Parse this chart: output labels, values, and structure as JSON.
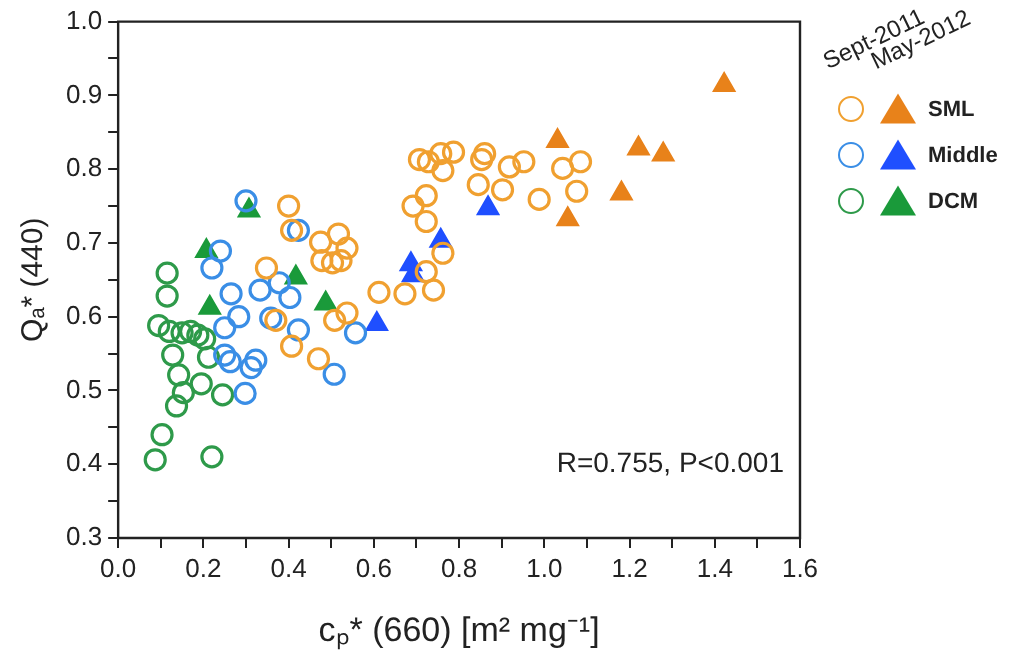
{
  "chart_data": {
    "type": "scatter",
    "xlabel": "cₚ* (660) [m² mg⁻¹]",
    "ylabel": "Qₐ* (440)",
    "xlim": [
      0,
      1.6
    ],
    "ylim": [
      0.3,
      1.0
    ],
    "xticks": [
      {
        "value": 0,
        "label": "0.0"
      },
      {
        "value": 0.1,
        "label": null
      },
      {
        "value": 0.2,
        "label": "0.2"
      },
      {
        "value": 0.3,
        "label": null
      },
      {
        "value": 0.4,
        "label": "0.4"
      },
      {
        "value": 0.5,
        "label": null
      },
      {
        "value": 0.6,
        "label": "0.6"
      },
      {
        "value": 0.7,
        "label": null
      },
      {
        "value": 0.8,
        "label": "0.8"
      },
      {
        "value": 0.9,
        "label": null
      },
      {
        "value": 1.0,
        "label": "1.0"
      },
      {
        "value": 1.1,
        "label": null
      },
      {
        "value": 1.2,
        "label": "1.2"
      },
      {
        "value": 1.3,
        "label": null
      },
      {
        "value": 1.4,
        "label": "1.4"
      },
      {
        "value": 1.5,
        "label": null
      },
      {
        "value": 1.6,
        "label": "1.6"
      }
    ],
    "yticks": [
      {
        "value": 0.3,
        "label": "0.3"
      },
      {
        "value": 0.35,
        "label": null
      },
      {
        "value": 0.4,
        "label": "0.4"
      },
      {
        "value": 0.45,
        "label": null
      },
      {
        "value": 0.5,
        "label": "0.5"
      },
      {
        "value": 0.55,
        "label": null
      },
      {
        "value": 0.6,
        "label": "0.6"
      },
      {
        "value": 0.65,
        "label": null
      },
      {
        "value": 0.7,
        "label": "0.7"
      },
      {
        "value": 0.75,
        "label": null
      },
      {
        "value": 0.8,
        "label": "0.8"
      },
      {
        "value": 0.85,
        "label": null
      },
      {
        "value": 0.9,
        "label": "0.9"
      },
      {
        "value": 0.95,
        "label": null
      },
      {
        "value": 1.0,
        "label": "1.0"
      }
    ],
    "legend": "right",
    "grid": false,
    "annotations": [
      "Sept-2011",
      "May-2012",
      "R=0.755, P<0.001"
    ],
    "series": [
      {
        "marker": "circle",
        "color": "#f0a030",
        "x": [
          0.4,
          0.407,
          0.475,
          0.517,
          0.537,
          0.478,
          0.503,
          0.523,
          0.348,
          0.37,
          0.407,
          0.47,
          0.537,
          0.508,
          0.612,
          0.673,
          0.74,
          0.723,
          0.762,
          0.692,
          0.723,
          0.723,
          0.707,
          0.728,
          0.757,
          0.787,
          0.762,
          0.853,
          0.845,
          0.86,
          0.902,
          0.918,
          0.952,
          0.988,
          1.043,
          1.085,
          1.076
        ],
        "values": [
          0.75,
          0.717,
          0.701,
          0.712,
          0.693,
          0.676,
          0.673,
          0.676,
          0.666,
          0.595,
          0.56,
          0.543,
          0.605,
          0.595,
          0.633,
          0.631,
          0.636,
          0.661,
          0.686,
          0.75,
          0.729,
          0.764,
          0.813,
          0.81,
          0.821,
          0.823,
          0.798,
          0.813,
          0.779,
          0.821,
          0.772,
          0.803,
          0.81,
          0.759,
          0.801,
          0.81,
          0.77
        ]
      },
      {
        "name": "SML",
        "marker": "triangle",
        "color": "#e8821a",
        "x": [
          1.031,
          1.055,
          1.181,
          1.221,
          1.279,
          1.422
        ],
        "values": [
          0.838,
          0.732,
          0.767,
          0.828,
          0.82,
          0.914
        ]
      },
      {
        "marker": "circle",
        "color": "#3a8ee6",
        "x": [
          0.3,
          0.24,
          0.22,
          0.265,
          0.283,
          0.25,
          0.333,
          0.378,
          0.358,
          0.403,
          0.423,
          0.423,
          0.557,
          0.25,
          0.323,
          0.312,
          0.298,
          0.507,
          0.263
        ],
        "values": [
          0.757,
          0.689,
          0.666,
          0.631,
          0.6,
          0.585,
          0.636,
          0.646,
          0.598,
          0.626,
          0.717,
          0.582,
          0.578,
          0.548,
          0.541,
          0.531,
          0.496,
          0.522,
          0.539
        ]
      },
      {
        "name": "Middle",
        "marker": "triangle",
        "color": "#1f4fff",
        "x": [
          0.607,
          0.687,
          0.692,
          0.757,
          0.868
        ],
        "values": [
          0.59,
          0.671,
          0.656,
          0.703,
          0.747
        ]
      },
      {
        "marker": "circle",
        "color": "#2e9a4a",
        "x": [
          0.115,
          0.115,
          0.095,
          0.12,
          0.15,
          0.17,
          0.187,
          0.203,
          0.128,
          0.212,
          0.142,
          0.153,
          0.137,
          0.195,
          0.245,
          0.103,
          0.087,
          0.22
        ],
        "values": [
          0.659,
          0.628,
          0.588,
          0.58,
          0.578,
          0.58,
          0.575,
          0.57,
          0.548,
          0.545,
          0.521,
          0.497,
          0.479,
          0.509,
          0.494,
          0.44,
          0.406,
          0.41
        ]
      },
      {
        "name": "DCM",
        "marker": "triangle",
        "color": "#1a9a3a",
        "x": [
          0.207,
          0.307,
          0.215,
          0.417,
          0.487
        ],
        "values": [
          0.689,
          0.744,
          0.612,
          0.653,
          0.618
        ]
      }
    ]
  }
}
